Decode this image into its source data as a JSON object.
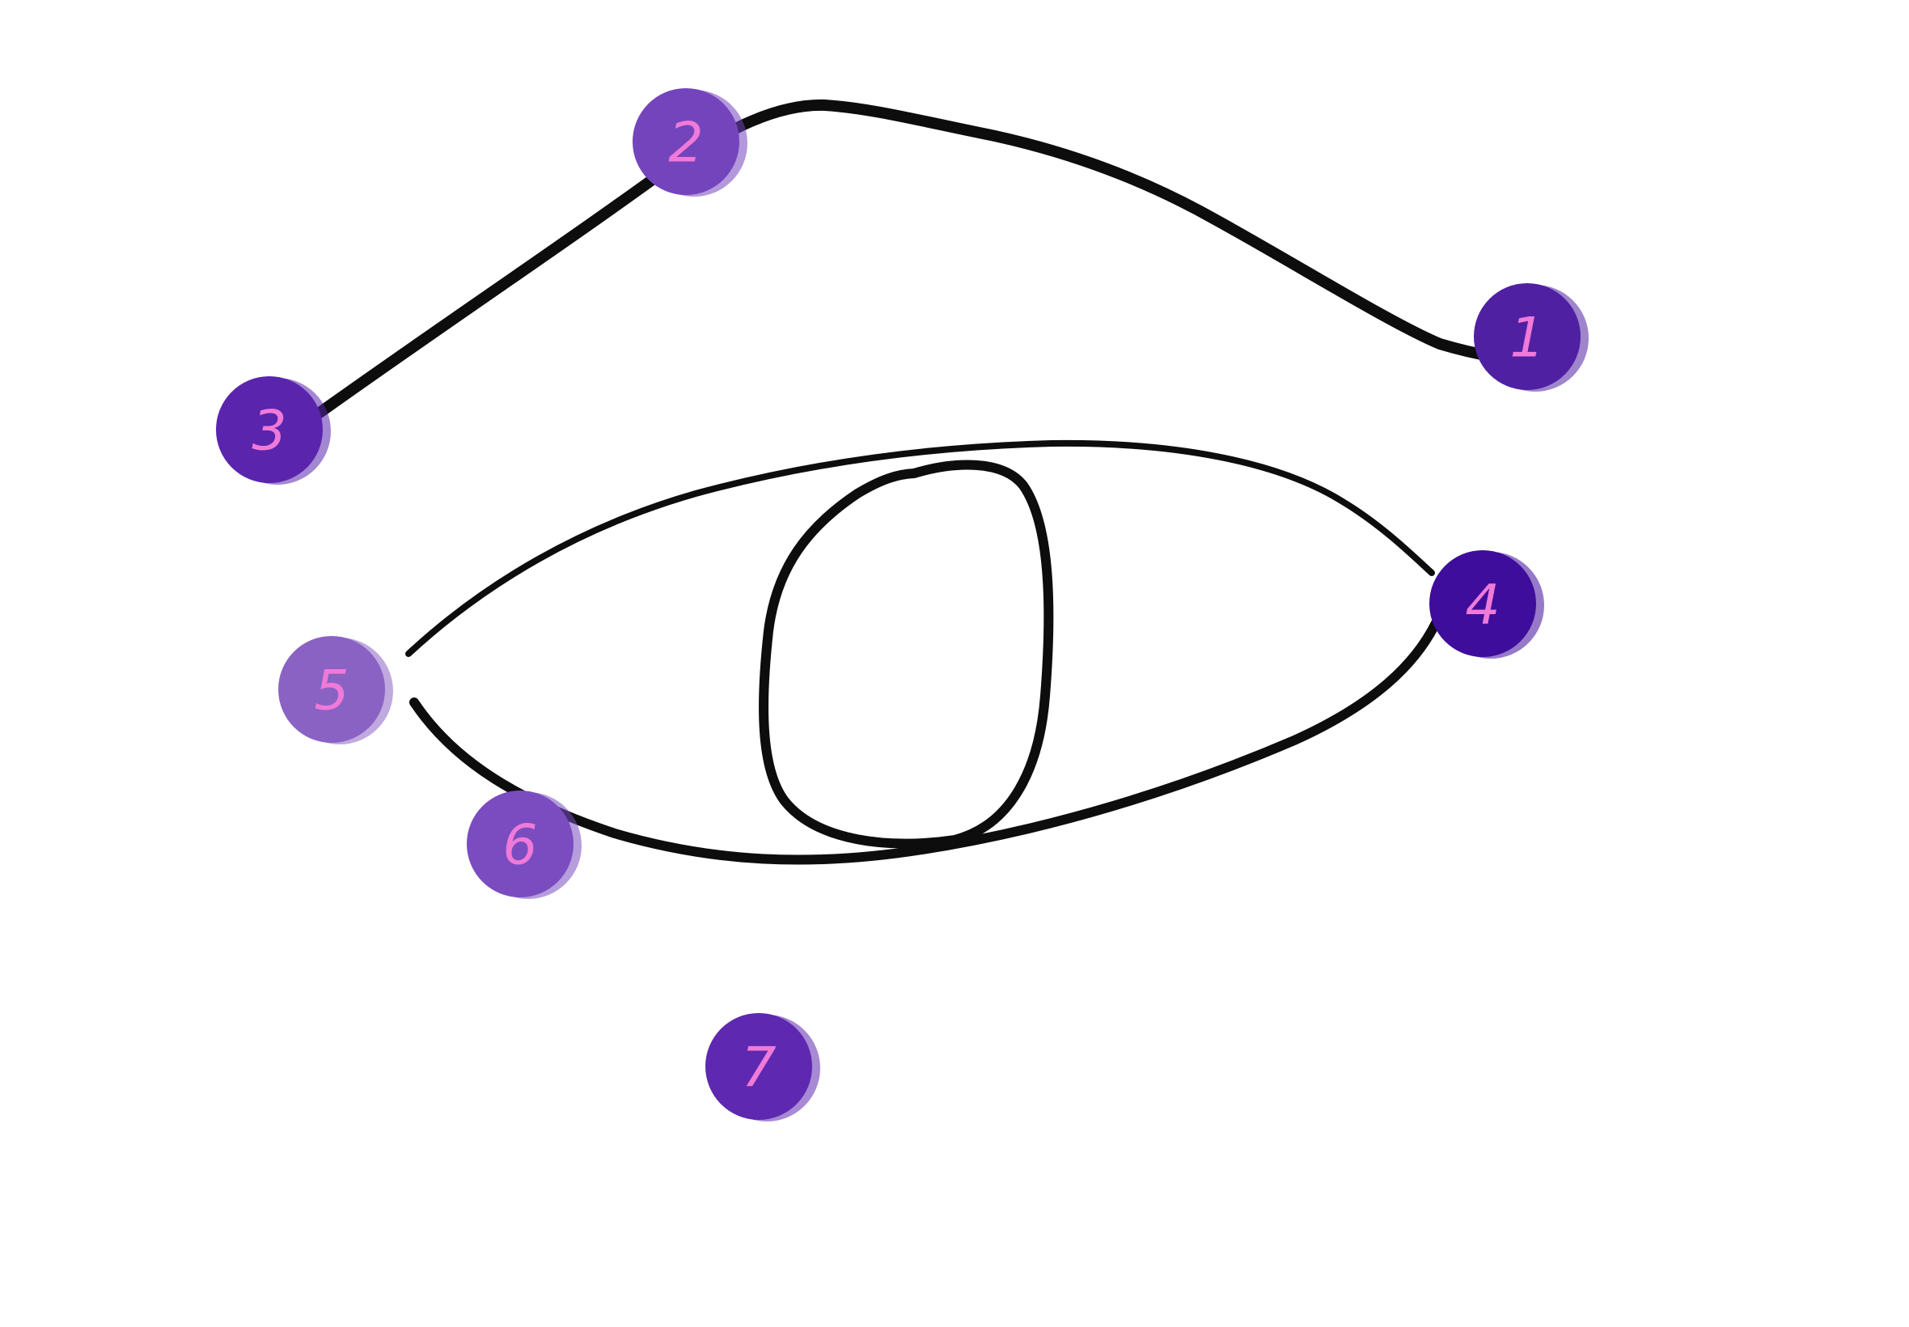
{
  "colors": {
    "background": "#ffffff",
    "ink": "#0d0d0d",
    "label": "#f07ad8"
  },
  "markers": [
    {
      "label": "1",
      "color": "#5020a3"
    },
    {
      "label": "2",
      "color": "#7444bd"
    },
    {
      "label": "3",
      "color": "#5a24ad"
    },
    {
      "label": "4",
      "color": "#3f0d9c"
    },
    {
      "label": "5",
      "color": "#8a62c4"
    },
    {
      "label": "6",
      "color": "#7a4cc0"
    },
    {
      "label": "7",
      "color": "#5e28b0"
    }
  ]
}
